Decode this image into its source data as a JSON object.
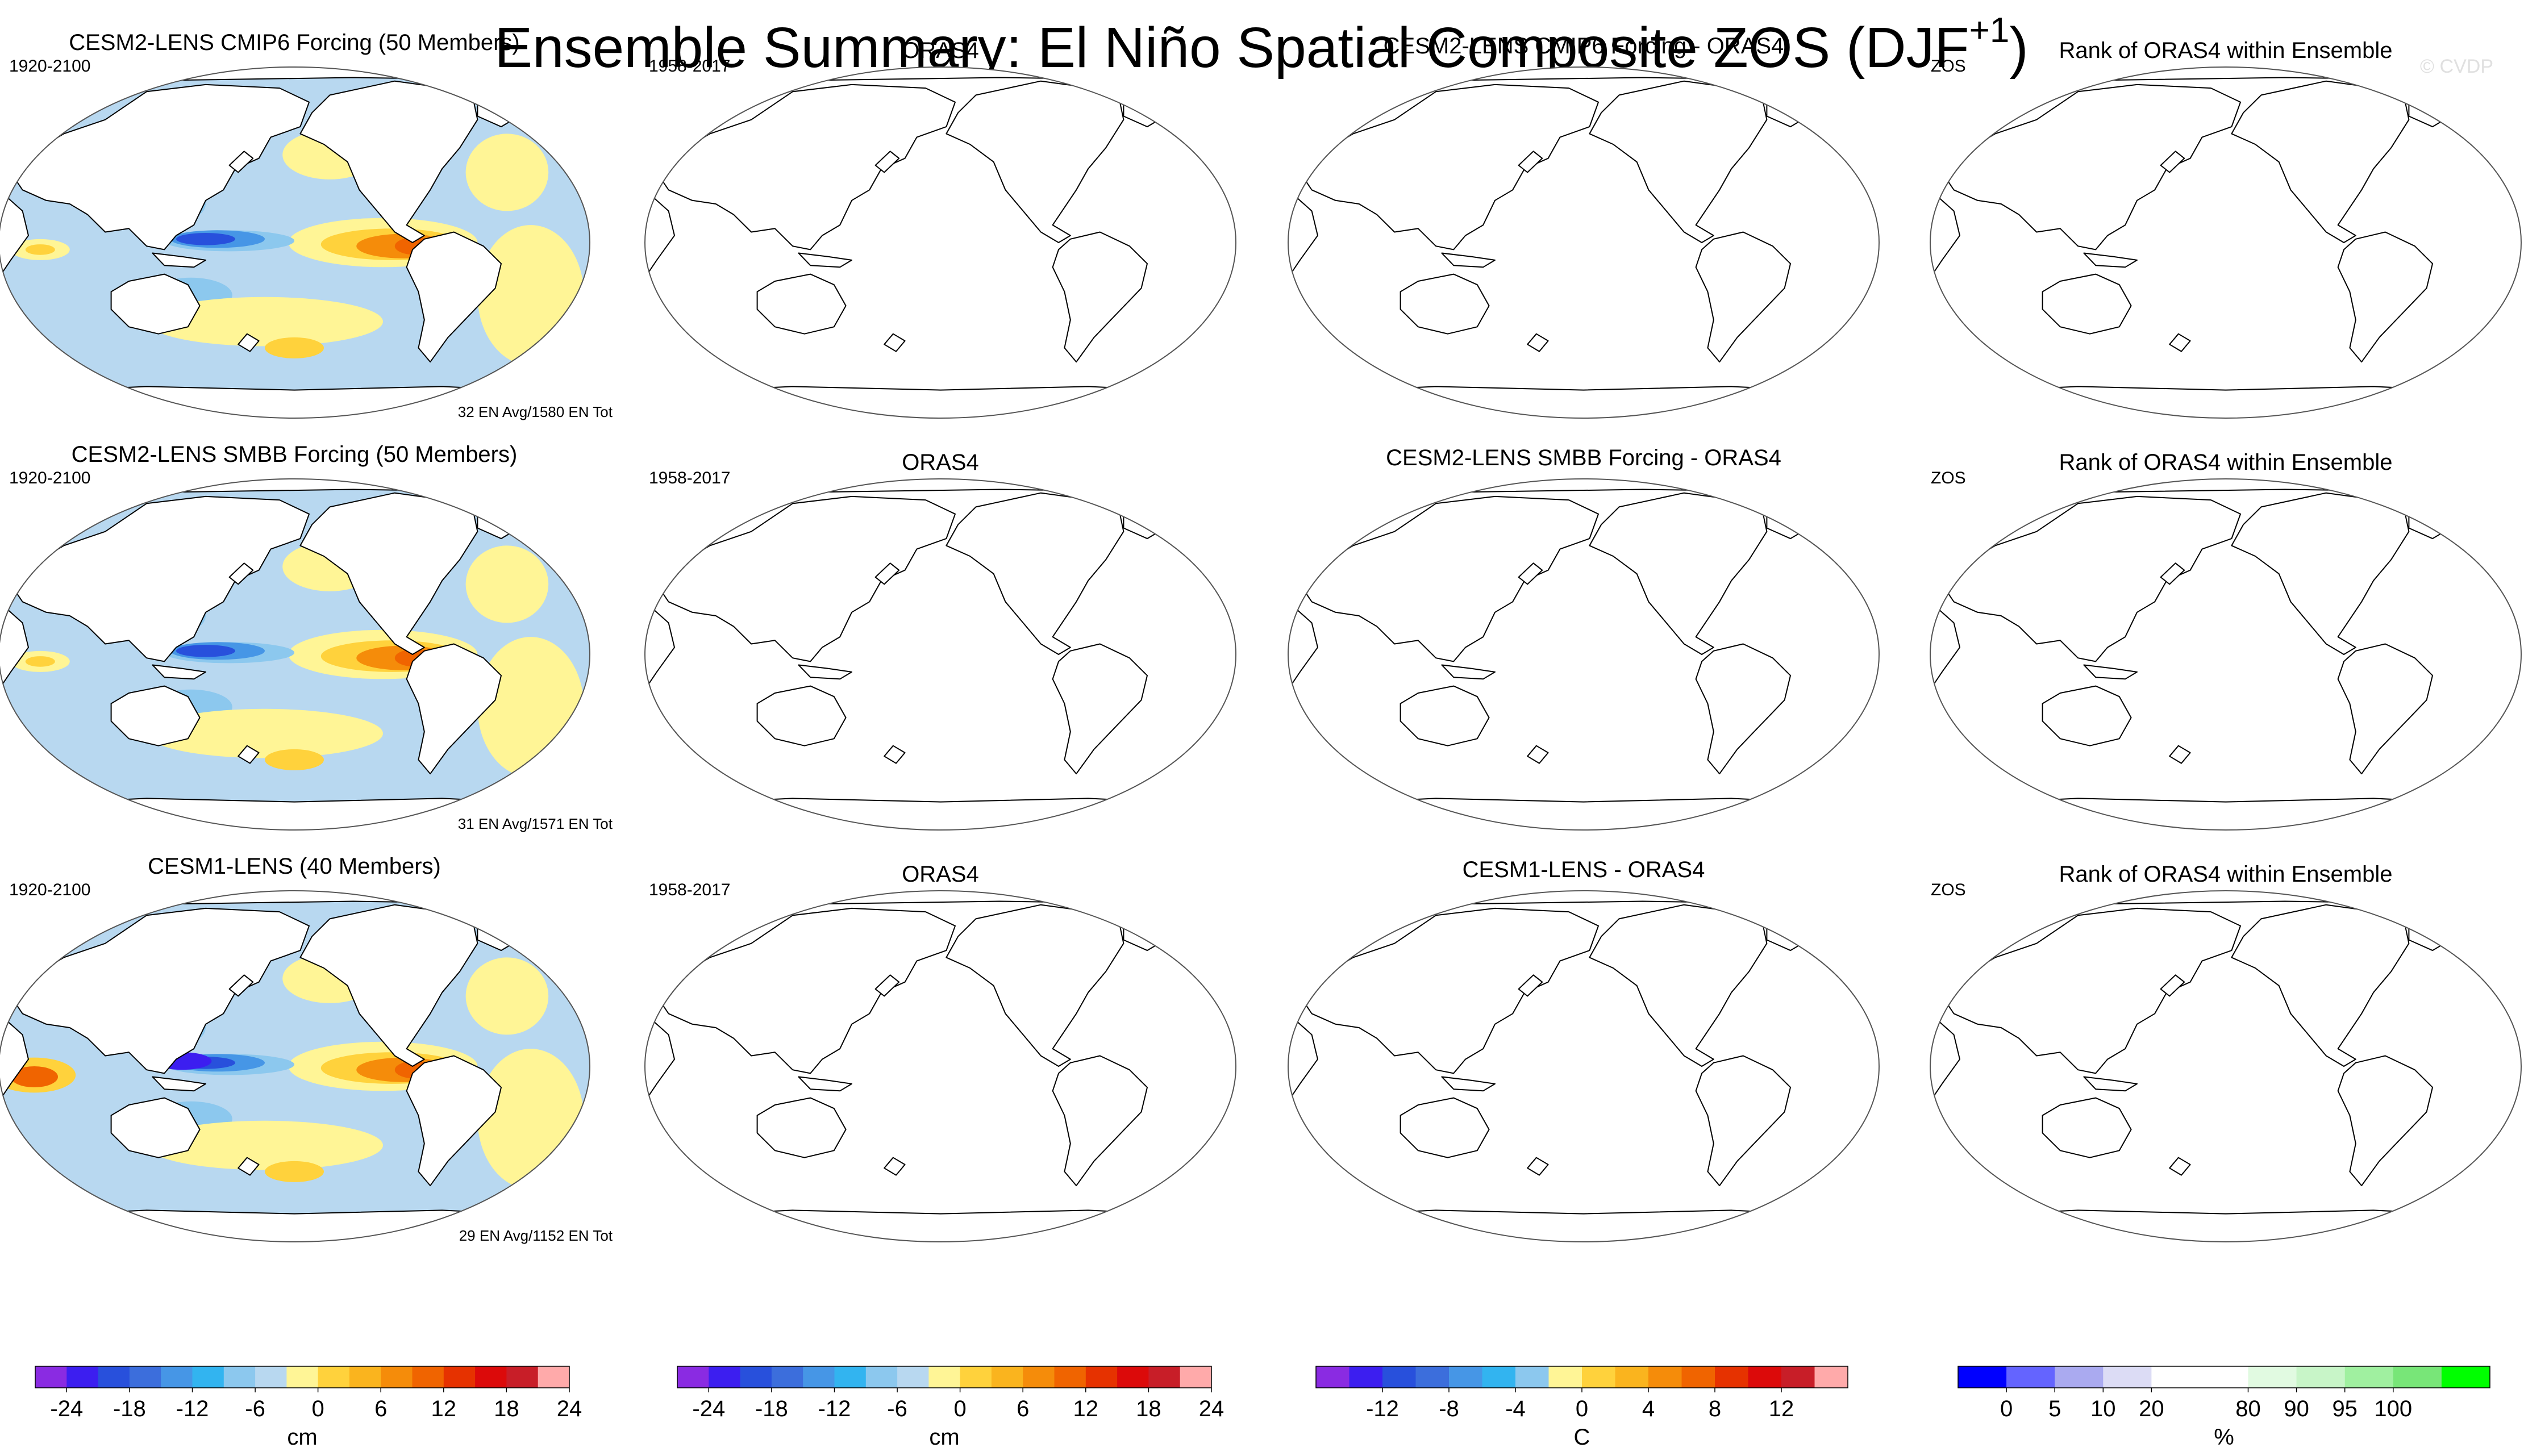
{
  "title": "Ensemble Summary: El Niño Spatial Composite ZOS (DJF",
  "title_superscript": "+1",
  "title_close": ")",
  "watermark": "© CVDP",
  "rows": [
    {
      "ensemble_title": "CESM2-LENS CMIP6 Forcing (50 Members)",
      "ensemble_title_color": "#1d6f86",
      "ensemble_years": "1920-2100",
      "ensemble_note": "32 EN Avg/1580 EN Tot",
      "obs_title": "ORAS4",
      "obs_years": "1958-2017",
      "diff_title": "CESM2-LENS CMIP6 Forcing - ORAS4",
      "rank_title": "Rank of ORAS4 within Ensemble",
      "rank_var": "ZOS",
      "variant": 0
    },
    {
      "ensemble_title": "CESM2-LENS SMBB Forcing (50 Members)",
      "ensemble_title_color": "#5e8a5e",
      "ensemble_years": "1920-2100",
      "ensemble_note": "31 EN Avg/1571 EN Tot",
      "obs_title": "ORAS4",
      "obs_years": "1958-2017",
      "diff_title": "CESM2-LENS SMBB Forcing - ORAS4",
      "rank_title": "Rank of ORAS4 within Ensemble",
      "rank_var": "ZOS",
      "variant": 1
    },
    {
      "ensemble_title": "CESM1-LENS (40 Members)",
      "ensemble_title_color": "#d6c56b",
      "ensemble_years": "1920-2100",
      "ensemble_note": "29 EN Avg/1152 EN Tot",
      "obs_title": "ORAS4",
      "obs_years": "1958-2017",
      "diff_title": "CESM1-LENS - ORAS4",
      "rank_title": "Rank of ORAS4 within Ensemble",
      "rank_var": "ZOS",
      "variant": 2
    }
  ],
  "colorbars": [
    {
      "name": "ensemble-colorbar",
      "unit": "cm",
      "colors": [
        "#8a2be2",
        "#3c1ef0",
        "#2850dc",
        "#3c6edc",
        "#4696e6",
        "#32b4f0",
        "#8cc8ee",
        "#b8d8f0",
        "#fff596",
        "#ffd23c",
        "#fab41e",
        "#f58c0a",
        "#f06400",
        "#e63200",
        "#dc0a0a",
        "#c81e28",
        "#ffaaaa"
      ],
      "ticks": [
        "-24",
        "-18",
        "-12",
        "-6",
        "0",
        "6",
        "12",
        "18",
        "24"
      ]
    },
    {
      "name": "obs-colorbar",
      "unit": "cm",
      "colors": [
        "#8a2be2",
        "#3c1ef0",
        "#2850dc",
        "#3c6edc",
        "#4696e6",
        "#32b4f0",
        "#8cc8ee",
        "#b8d8f0",
        "#fff596",
        "#ffd23c",
        "#fab41e",
        "#f58c0a",
        "#f06400",
        "#e63200",
        "#dc0a0a",
        "#c81e28",
        "#ffaaaa"
      ],
      "ticks": [
        "-24",
        "-18",
        "-12",
        "-6",
        "0",
        "6",
        "12",
        "18",
        "24"
      ]
    },
    {
      "name": "diff-colorbar",
      "unit": "C",
      "colors": [
        "#8a2be2",
        "#3c1ef0",
        "#2850dc",
        "#3c6edc",
        "#4696e6",
        "#32b4f0",
        "#8cc8ee",
        "#fff596",
        "#ffd23c",
        "#fab41e",
        "#f58c0a",
        "#f06400",
        "#e63200",
        "#dc0a0a",
        "#c81e28",
        "#ffaaaa"
      ],
      "ticks": [
        "-12",
        "-8",
        "-4",
        "0",
        "4",
        "8",
        "12"
      ]
    },
    {
      "name": "rank-colorbar",
      "unit": "%",
      "colors": [
        "#0000ff",
        "#6464ff",
        "#aaaaf0",
        "#dcdcf5",
        "#ffffff",
        "#ffffff",
        "#e1fae1",
        "#c8f5c8",
        "#a0f0a0",
        "#78e678",
        "#00ff00"
      ],
      "ticks": [
        "0",
        "5",
        "10",
        "20",
        "80",
        "90",
        "95",
        "100"
      ]
    }
  ],
  "colors": {
    "land": "#ffffff",
    "coast": "#000000",
    "ocean_neg_light": "#b8d8f0",
    "ocean_pos_light": "#fff596"
  }
}
